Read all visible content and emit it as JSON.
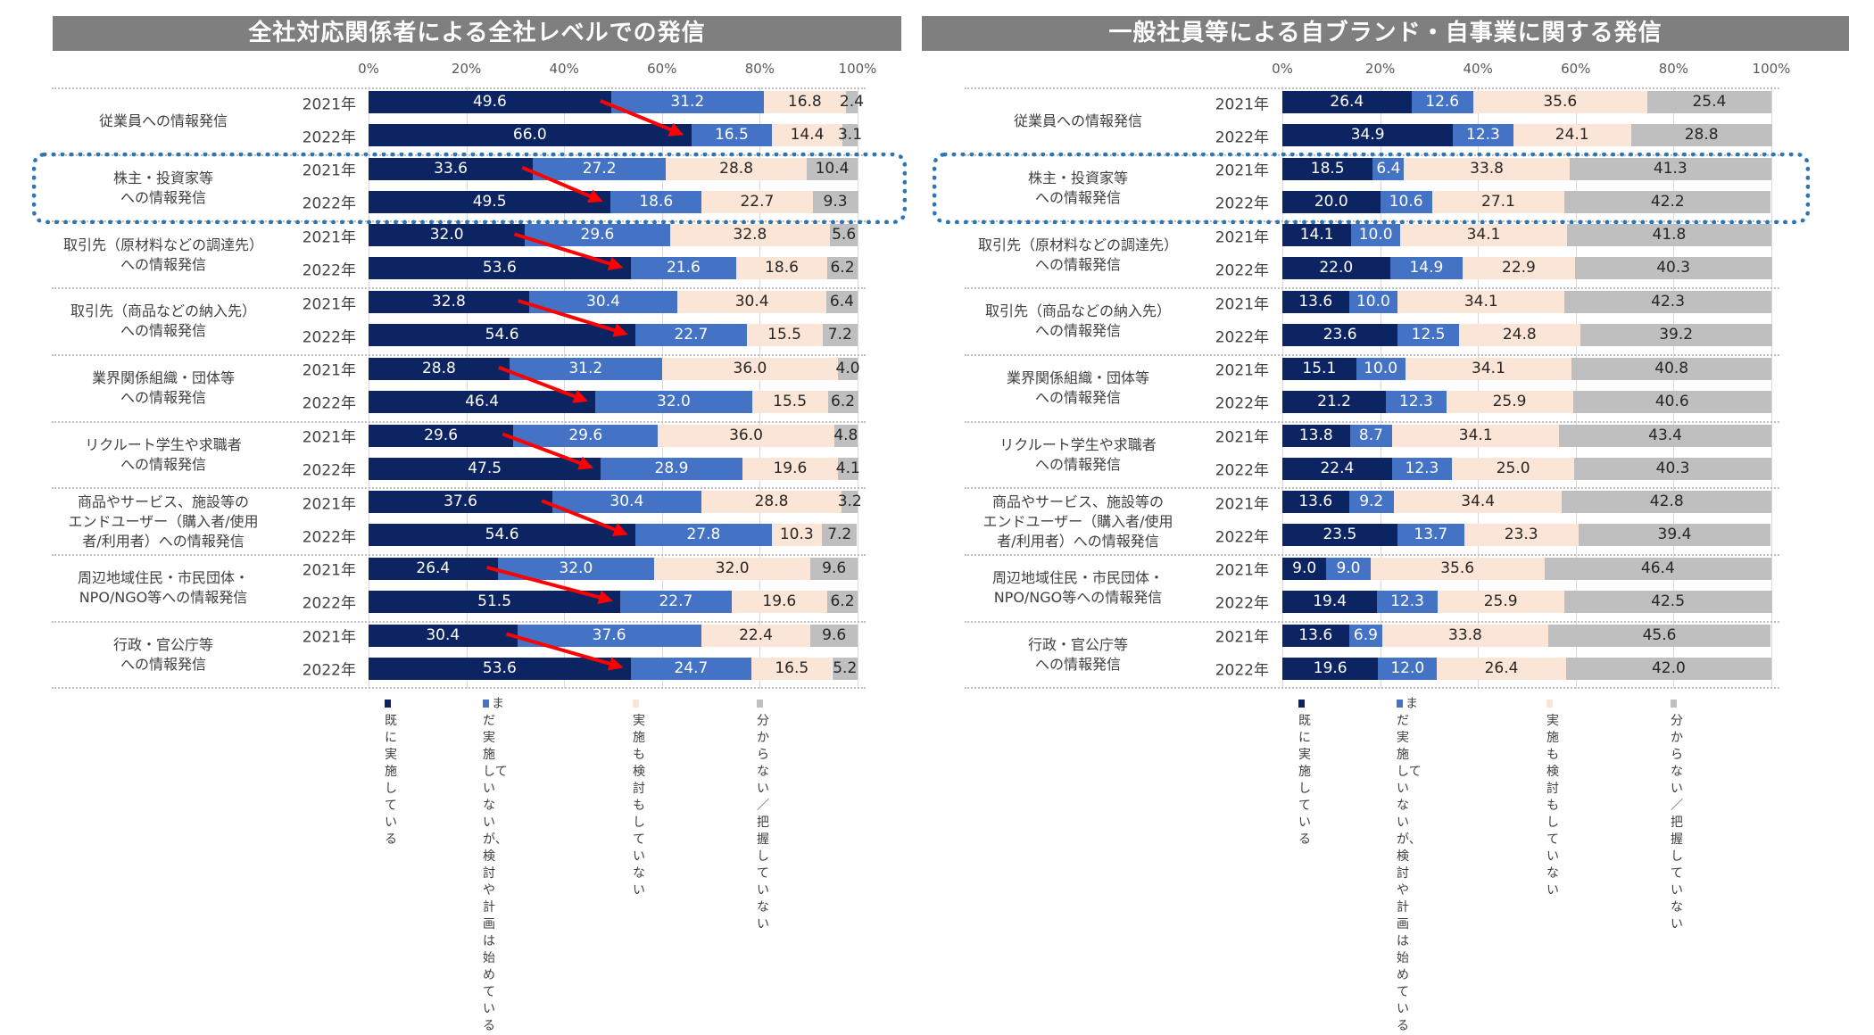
{
  "colors": {
    "implemented": "#0c2461",
    "planning": "#4472c4",
    "not_considered": "#fbe5d6",
    "unknown": "#bfbfbf",
    "title_bar": "#7f7f7f",
    "highlight_box": "#2e75b6",
    "arrow": "#ff0000"
  },
  "chart_data": [
    {
      "type": "bar",
      "orientation": "horizontal-stacked-100",
      "title": "全社対応関係者による全社レベルでの発信",
      "xlim": [
        0,
        100
      ],
      "x_ticks": [
        "0%",
        "20%",
        "40%",
        "60%",
        "80%",
        "100%"
      ],
      "grid": true,
      "legend_position": "bottom",
      "series_names": [
        "既に実施\nしている",
        "まだ実施して\nいないが、検討や\n計画は始めている",
        "実施も検討も\nしていない",
        "分からない／\n把握していない"
      ],
      "highlighted_category": "株主・投資家等\nへの情報発信",
      "annotation": "red arrows from 2021 to 2022 showing increase of 既に実施している",
      "categories": [
        {
          "label": "従業員への情報発信",
          "rows": [
            {
              "year": "2021年",
              "values": [
                49.6,
                31.2,
                16.8,
                2.4
              ]
            },
            {
              "year": "2022年",
              "values": [
                66.0,
                16.5,
                14.4,
                3.1
              ]
            }
          ]
        },
        {
          "label": "株主・投資家等\nへの情報発信",
          "rows": [
            {
              "year": "2021年",
              "values": [
                33.6,
                27.2,
                28.8,
                10.4
              ]
            },
            {
              "year": "2022年",
              "values": [
                49.5,
                18.6,
                22.7,
                9.3
              ]
            }
          ]
        },
        {
          "label": "取引先（原材料などの調達先）\nへの情報発信",
          "rows": [
            {
              "year": "2021年",
              "values": [
                32.0,
                29.6,
                32.8,
                5.6
              ]
            },
            {
              "year": "2022年",
              "values": [
                53.6,
                21.6,
                18.6,
                6.2
              ]
            }
          ]
        },
        {
          "label": "取引先（商品などの納入先）\nへの情報発信",
          "rows": [
            {
              "year": "2021年",
              "values": [
                32.8,
                30.4,
                30.4,
                6.4
              ]
            },
            {
              "year": "2022年",
              "values": [
                54.6,
                22.7,
                15.5,
                7.2
              ]
            }
          ]
        },
        {
          "label": "業界関係組織・団体等\nへの情報発信",
          "rows": [
            {
              "year": "2021年",
              "values": [
                28.8,
                31.2,
                36.0,
                4.0
              ]
            },
            {
              "year": "2022年",
              "values": [
                46.4,
                32.0,
                15.5,
                6.2
              ]
            }
          ]
        },
        {
          "label": "リクルート学生や求職者\nへの情報発信",
          "rows": [
            {
              "year": "2021年",
              "values": [
                29.6,
                29.6,
                36.0,
                4.8
              ]
            },
            {
              "year": "2022年",
              "values": [
                47.5,
                28.9,
                19.6,
                4.1
              ]
            }
          ]
        },
        {
          "label": "商品やサービス、施設等の\nエンドユーザー（購入者/使用\n者/利用者）への情報発信",
          "rows": [
            {
              "year": "2021年",
              "values": [
                37.6,
                30.4,
                28.8,
                3.2
              ]
            },
            {
              "year": "2022年",
              "values": [
                54.6,
                27.8,
                10.3,
                7.2
              ]
            }
          ]
        },
        {
          "label": "周辺地域住民・市民団体・\nNPO/NGO等への情報発信",
          "rows": [
            {
              "year": "2021年",
              "values": [
                26.4,
                32.0,
                32.0,
                9.6
              ]
            },
            {
              "year": "2022年",
              "values": [
                51.5,
                22.7,
                19.6,
                6.2
              ]
            }
          ]
        },
        {
          "label": "行政・官公庁等\nへの情報発信",
          "rows": [
            {
              "year": "2021年",
              "values": [
                30.4,
                37.6,
                22.4,
                9.6
              ]
            },
            {
              "year": "2022年",
              "values": [
                53.6,
                24.7,
                16.5,
                5.2
              ]
            }
          ]
        }
      ]
    },
    {
      "type": "bar",
      "orientation": "horizontal-stacked-100",
      "title": "一般社員等による自ブランド・自事業に関する発信",
      "xlim": [
        0,
        100
      ],
      "x_ticks": [
        "0%",
        "20%",
        "40%",
        "60%",
        "80%",
        "100%"
      ],
      "grid": true,
      "legend_position": "bottom",
      "series_names": [
        "既に実施\nしている",
        "まだ実施して\nいないが、検討や\n計画は始めている",
        "実施も検討も\nしていない",
        "分からない／\n把握していない"
      ],
      "highlighted_category": "株主・投資家等\nへの情報発信",
      "categories": [
        {
          "label": "従業員への情報発信",
          "rows": [
            {
              "year": "2021年",
              "values": [
                26.4,
                12.6,
                35.6,
                25.4
              ]
            },
            {
              "year": "2022年",
              "values": [
                34.9,
                12.3,
                24.1,
                28.8
              ]
            }
          ]
        },
        {
          "label": "株主・投資家等\nへの情報発信",
          "rows": [
            {
              "year": "2021年",
              "values": [
                18.5,
                6.4,
                33.8,
                41.3
              ]
            },
            {
              "year": "2022年",
              "values": [
                20.0,
                10.6,
                27.1,
                42.2
              ]
            }
          ]
        },
        {
          "label": "取引先（原材料などの調達先）\nへの情報発信",
          "rows": [
            {
              "year": "2021年",
              "values": [
                14.1,
                10.0,
                34.1,
                41.8
              ]
            },
            {
              "year": "2022年",
              "values": [
                22.0,
                14.9,
                22.9,
                40.3
              ]
            }
          ]
        },
        {
          "label": "取引先（商品などの納入先）\nへの情報発信",
          "rows": [
            {
              "year": "2021年",
              "values": [
                13.6,
                10.0,
                34.1,
                42.3
              ]
            },
            {
              "year": "2022年",
              "values": [
                23.6,
                12.5,
                24.8,
                39.2
              ]
            }
          ]
        },
        {
          "label": "業界関係組織・団体等\nへの情報発信",
          "rows": [
            {
              "year": "2021年",
              "values": [
                15.1,
                10.0,
                34.1,
                40.8
              ]
            },
            {
              "year": "2022年",
              "values": [
                21.2,
                12.3,
                25.9,
                40.6
              ]
            }
          ]
        },
        {
          "label": "リクルート学生や求職者\nへの情報発信",
          "rows": [
            {
              "year": "2021年",
              "values": [
                13.8,
                8.7,
                34.1,
                43.4
              ]
            },
            {
              "year": "2022年",
              "values": [
                22.4,
                12.3,
                25.0,
                40.3
              ]
            }
          ]
        },
        {
          "label": "商品やサービス、施設等の\nエンドユーザー（購入者/使用\n者/利用者）への情報発信",
          "rows": [
            {
              "year": "2021年",
              "values": [
                13.6,
                9.2,
                34.4,
                42.8
              ]
            },
            {
              "year": "2022年",
              "values": [
                23.5,
                13.7,
                23.3,
                39.4
              ]
            }
          ]
        },
        {
          "label": "周辺地域住民・市民団体・\nNPO/NGO等への情報発信",
          "rows": [
            {
              "year": "2021年",
              "values": [
                9.0,
                9.0,
                35.6,
                46.4
              ]
            },
            {
              "year": "2022年",
              "values": [
                19.4,
                12.3,
                25.9,
                42.5
              ]
            }
          ]
        },
        {
          "label": "行政・官公庁等\nへの情報発信",
          "rows": [
            {
              "year": "2021年",
              "values": [
                13.6,
                6.9,
                33.8,
                45.6
              ]
            },
            {
              "year": "2022年",
              "values": [
                19.6,
                12.0,
                26.4,
                42.0
              ]
            }
          ]
        }
      ]
    }
  ]
}
